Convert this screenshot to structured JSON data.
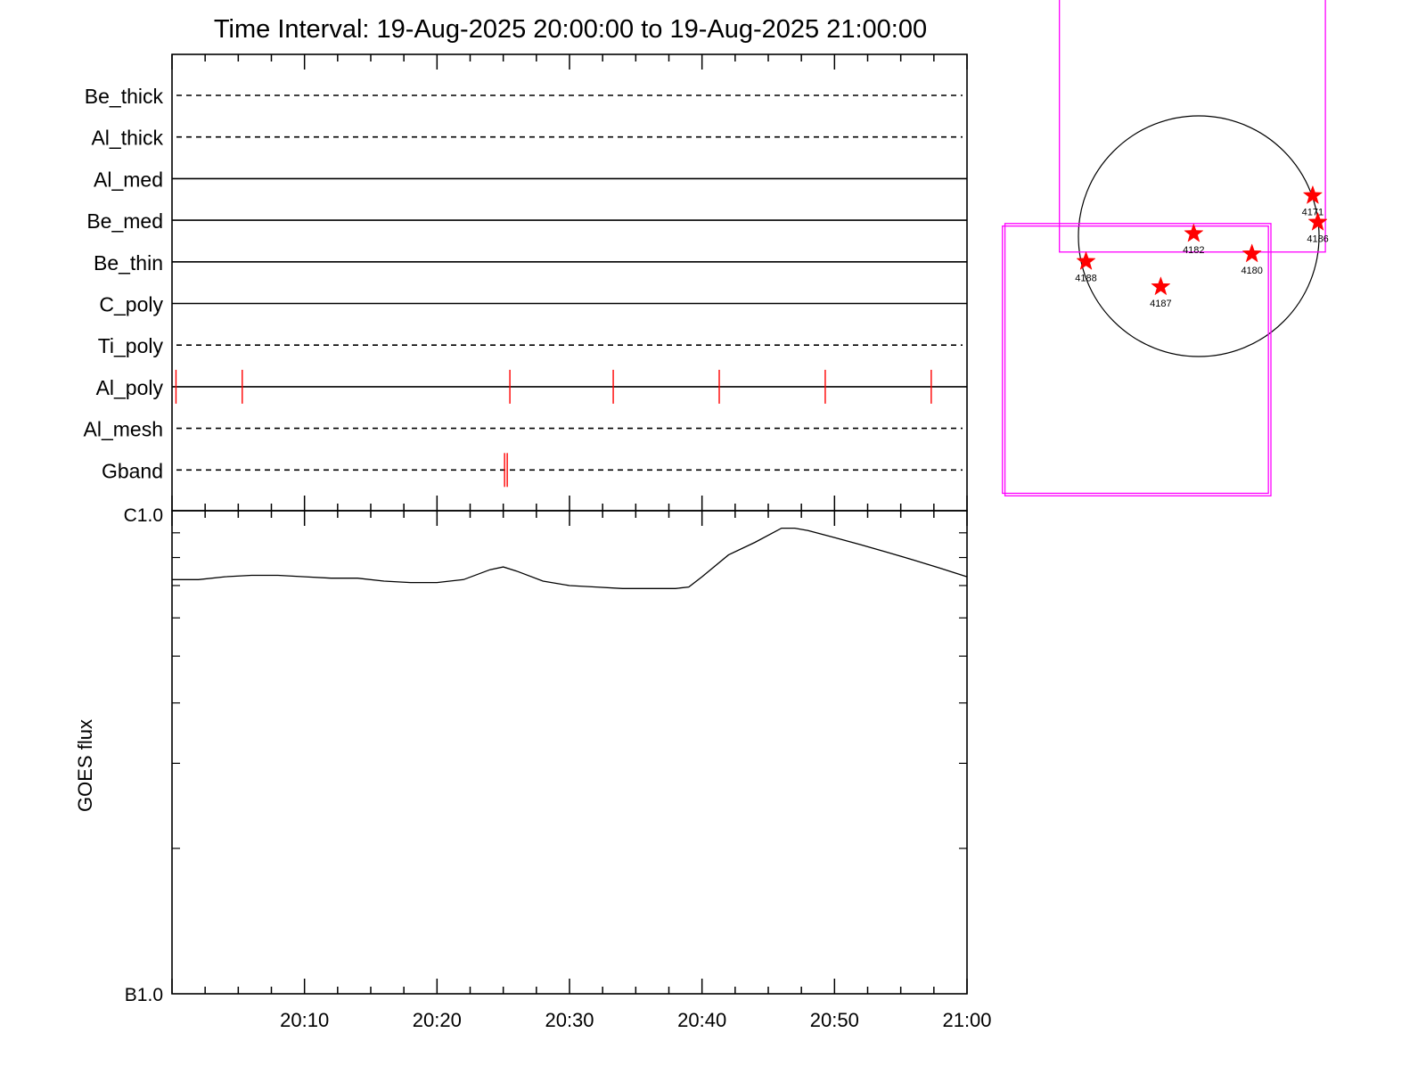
{
  "title": "Time Interval: 19-Aug-2025 20:00:00 to 19-Aug-2025 21:00:00",
  "colors": {
    "event": "#ff0000",
    "fov": "#ff00ff",
    "line": "#000000"
  },
  "chart_data": [
    {
      "type": "timeline",
      "x_unit": "minutes after 20:00",
      "xlim": [
        0,
        60
      ],
      "filters": [
        {
          "name": "Be_thick",
          "style": "dashed",
          "events": []
        },
        {
          "name": "Al_thick",
          "style": "dashed",
          "events": []
        },
        {
          "name": "Al_med",
          "style": "solid",
          "events": []
        },
        {
          "name": "Be_med",
          "style": "solid",
          "events": []
        },
        {
          "name": "Be_thin",
          "style": "solid",
          "events": []
        },
        {
          "name": "C_poly",
          "style": "solid",
          "events": []
        },
        {
          "name": "Ti_poly",
          "style": "dashed",
          "events": []
        },
        {
          "name": "Al_poly",
          "style": "solid",
          "events": [
            0.3,
            5.3,
            25.5,
            33.3,
            41.3,
            49.3,
            57.3
          ]
        },
        {
          "name": "Al_mesh",
          "style": "dashed",
          "events": []
        },
        {
          "name": "Gband",
          "style": "dashed",
          "events": [
            25.1,
            25.3
          ]
        }
      ]
    },
    {
      "type": "line",
      "ylabel": "GOES flux",
      "ytick_labels": [
        "C1.0",
        "B1.0"
      ],
      "ylim": [
        1e-07,
        1e-06
      ],
      "yscale": "log",
      "xtick_labels": [
        "20:10",
        "20:20",
        "20:30",
        "20:40",
        "20:50",
        "21:00"
      ],
      "xticks": [
        10,
        20,
        30,
        40,
        50,
        60
      ],
      "x": [
        0,
        2,
        4,
        6,
        8,
        10,
        12,
        14,
        16,
        18,
        20,
        22,
        24,
        25,
        26,
        28,
        30,
        32,
        34,
        36,
        38,
        39,
        40,
        42,
        44,
        46,
        47,
        48,
        50,
        52,
        54,
        56,
        58,
        60
      ],
      "y": [
        7.2e-07,
        7.2e-07,
        7.3e-07,
        7.35e-07,
        7.35e-07,
        7.3e-07,
        7.25e-07,
        7.25e-07,
        7.15e-07,
        7.1e-07,
        7.1e-07,
        7.2e-07,
        7.55e-07,
        7.65e-07,
        7.5e-07,
        7.15e-07,
        7e-07,
        6.95e-07,
        6.9e-07,
        6.9e-07,
        6.9e-07,
        6.95e-07,
        7.3e-07,
        8.1e-07,
        8.6e-07,
        9.2e-07,
        9.2e-07,
        9.1e-07,
        8.8e-07,
        8.5e-07,
        8.2e-07,
        7.9e-07,
        7.6e-07,
        7.3e-07
      ]
    },
    {
      "type": "scatter",
      "description_unit": "heliocentric arcsec",
      "solar_radius": 950,
      "regions": [
        {
          "label": "4171",
          "x": 900,
          "y": 320
        },
        {
          "label": "4186",
          "x": 940,
          "y": 110
        },
        {
          "label": "4182",
          "x": -40,
          "y": 20
        },
        {
          "label": "4180",
          "x": 420,
          "y": -140
        },
        {
          "label": "4188",
          "x": -890,
          "y": -200
        },
        {
          "label": "4187",
          "x": -300,
          "y": -400
        }
      ],
      "fov_boxes": [
        {
          "x": [
            -1550,
            550
          ],
          "y": [
            -2030,
            80
          ]
        },
        {
          "x": [
            -1530,
            570
          ],
          "y": [
            -2050,
            100
          ]
        },
        {
          "x": [
            -1100,
            1000
          ],
          "y": [
            -125,
            1980
          ]
        }
      ]
    }
  ]
}
